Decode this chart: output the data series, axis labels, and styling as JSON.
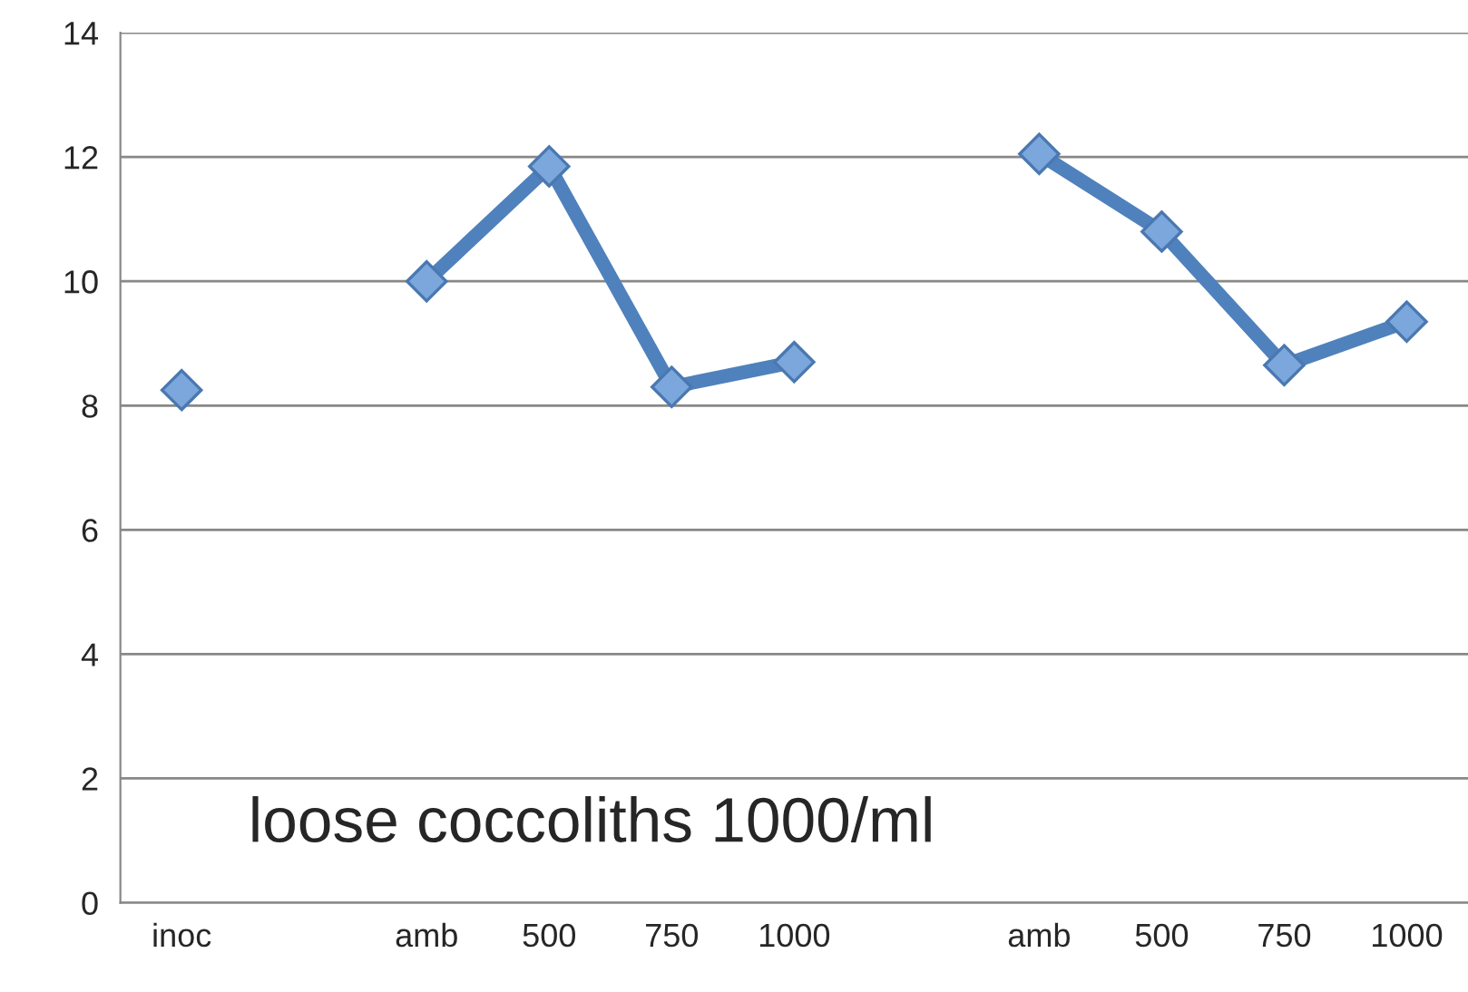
{
  "chart_data": {
    "type": "line",
    "categories": [
      "inoc",
      null,
      "amb",
      "500",
      "750",
      "1000",
      null,
      "amb",
      "500",
      "750",
      "1000"
    ],
    "series": [
      {
        "color": "#4f81bd",
        "values": [
          8.25,
          null,
          10.0,
          11.85,
          8.3,
          8.7,
          null,
          12.05,
          10.8,
          8.65,
          9.35
        ]
      }
    ],
    "ylim": [
      0,
      14
    ],
    "yticks": [
      0,
      2,
      4,
      6,
      8,
      10,
      12,
      14
    ],
    "grid": "y",
    "marker": "diamond",
    "line_style": "solid",
    "annotations": [
      "loose coccoliths 1000/ml"
    ]
  }
}
